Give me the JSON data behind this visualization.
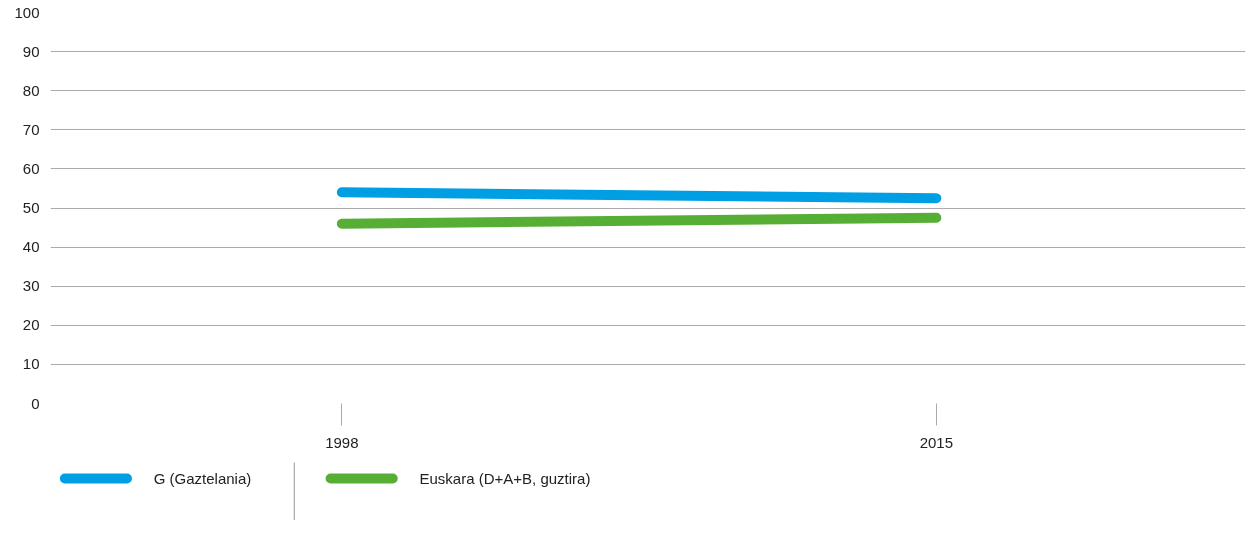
{
  "chart_data": {
    "type": "line",
    "categories": [
      "1998",
      "2015"
    ],
    "series": [
      {
        "name": "G (Gaztelania)",
        "color": "#009fe3",
        "values": [
          54,
          52.5
        ]
      },
      {
        "name": "Euskara (D+A+B, guztira)",
        "color": "#57ae35",
        "values": [
          46,
          47.5
        ]
      }
    ],
    "ylim": [
      0,
      100
    ],
    "yticks": [
      0,
      10,
      20,
      30,
      40,
      50,
      60,
      70,
      80,
      90,
      100
    ],
    "grid": "y",
    "legend": "bottom",
    "marker": "none",
    "line_style": "solid"
  }
}
